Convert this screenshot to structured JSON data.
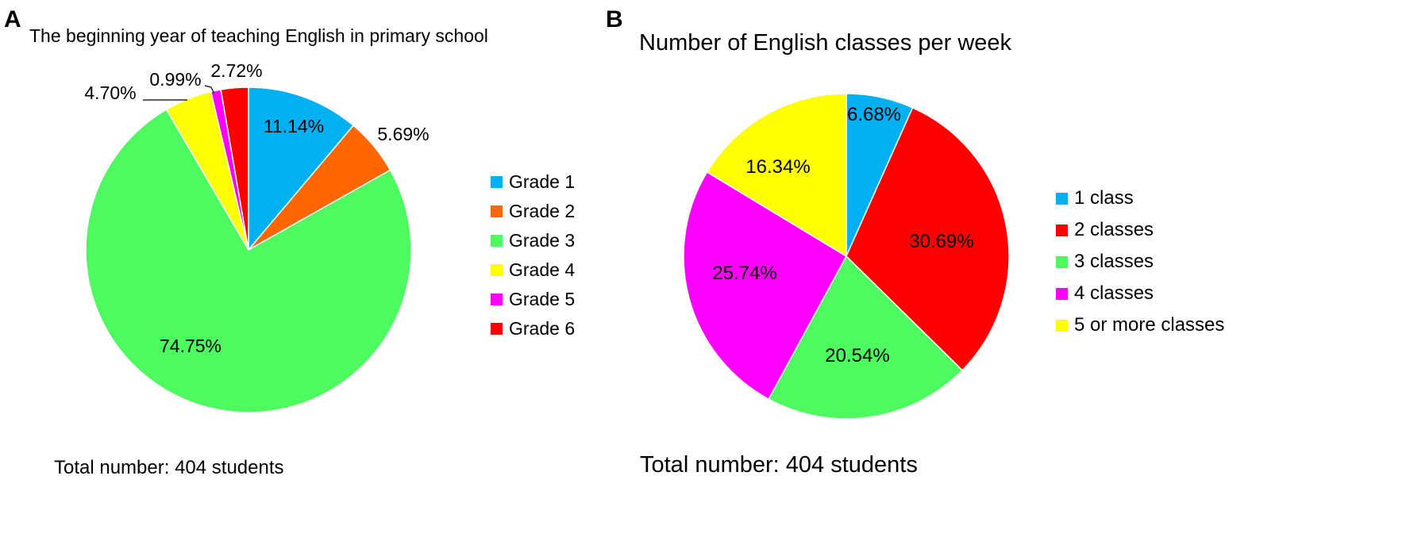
{
  "panel_a": {
    "letter": "A"
  },
  "panel_b": {
    "letter": "B"
  },
  "chart_data": [
    {
      "type": "pie",
      "title": "The beginning year of teaching English in primary school",
      "footer": "Total number: 404 students",
      "categories": [
        "Grade 1",
        "Grade 2",
        "Grade 3",
        "Grade 4",
        "Grade 5",
        "Grade 6"
      ],
      "values": [
        11.14,
        5.69,
        74.75,
        4.7,
        0.99,
        2.72
      ],
      "labels": [
        "11.14%",
        "5.69%",
        "74.75%",
        "4.70%",
        "0.99%",
        "2.72%"
      ],
      "colors": [
        "#00b0f0",
        "#ff6600",
        "#4dfa5f",
        "#ffff00",
        "#ff00ff",
        "#ff0000"
      ],
      "legend": "right",
      "start": "12 o'clock, clockwise"
    },
    {
      "type": "pie",
      "title": "Number of English classes per week",
      "footer": "Total number: 404 students",
      "categories": [
        "1 class",
        "2 classes",
        "3 classes",
        "4 classes",
        "5 or more classes"
      ],
      "values": [
        6.68,
        30.69,
        20.54,
        25.74,
        16.34
      ],
      "labels": [
        "6.68%",
        "30.69%",
        "20.54%",
        "25.74%",
        "16.34%"
      ],
      "colors": [
        "#00b0f0",
        "#ff0000",
        "#4dfa5f",
        "#ff00ff",
        "#ffff00"
      ],
      "legend": "right",
      "start": "12 o'clock, clockwise"
    }
  ]
}
